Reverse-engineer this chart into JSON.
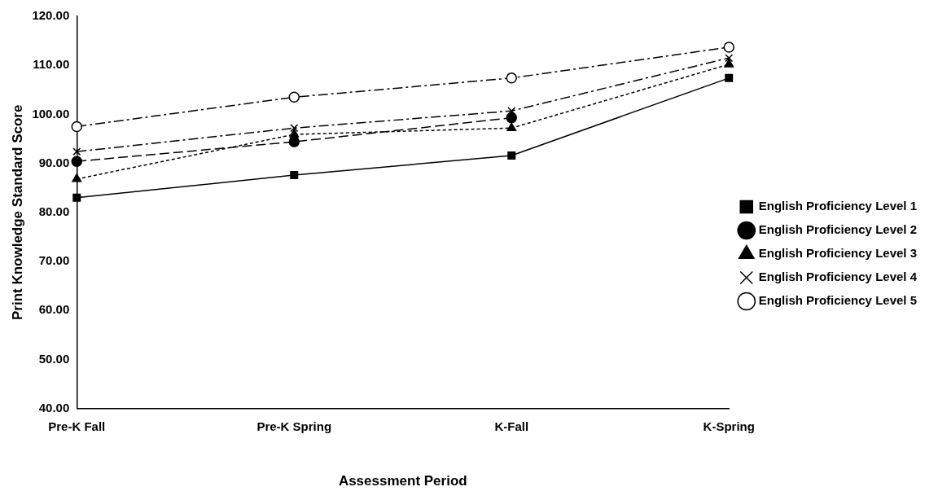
{
  "chart_data": {
    "type": "line",
    "xlabel": "Assessment Period",
    "ylabel": "Print Knowledge Standard Score",
    "categories": [
      "Pre-K Fall",
      "Pre-K Spring",
      "K-Fall",
      "K-Spring"
    ],
    "ylim": [
      40,
      120
    ],
    "yticks": [
      {
        "value": 40,
        "label": "40.00"
      },
      {
        "value": 50,
        "label": "50.00"
      },
      {
        "value": 60,
        "label": "60.00"
      },
      {
        "value": 70,
        "label": "70.00"
      },
      {
        "value": 80,
        "label": "80.00"
      },
      {
        "value": 90,
        "label": "90.00"
      },
      {
        "value": 100,
        "label": "100.00"
      },
      {
        "value": 110,
        "label": "110.00"
      },
      {
        "value": 120,
        "label": "120.00"
      }
    ],
    "grid": false,
    "legend": "right",
    "series": [
      {
        "name": "English Proficiency Level 1",
        "color": "#000000",
        "marker": "square",
        "line_style": "solid",
        "values": [
          83.0,
          87.6,
          91.6,
          107.4
        ]
      },
      {
        "name": "English Proficiency Level 2",
        "color": "#000000",
        "marker": "circle",
        "line_style": "dashed",
        "values": [
          90.4,
          94.4,
          99.3,
          null
        ]
      },
      {
        "name": "English Proficiency Level 3",
        "color": "#000000",
        "marker": "triangle",
        "line_style": "dotted",
        "values": [
          86.8,
          95.9,
          97.2,
          110.2
        ]
      },
      {
        "name": "English Proficiency Level 4",
        "color": "#000000",
        "marker": "cross",
        "line_style": "dashdot",
        "values": [
          92.4,
          97.2,
          100.7,
          111.5
        ]
      },
      {
        "name": "English Proficiency Level 5",
        "color": "#000000",
        "marker": "circle-open",
        "line_style": "dashdot",
        "values": [
          97.5,
          103.5,
          107.4,
          113.7
        ]
      }
    ]
  }
}
